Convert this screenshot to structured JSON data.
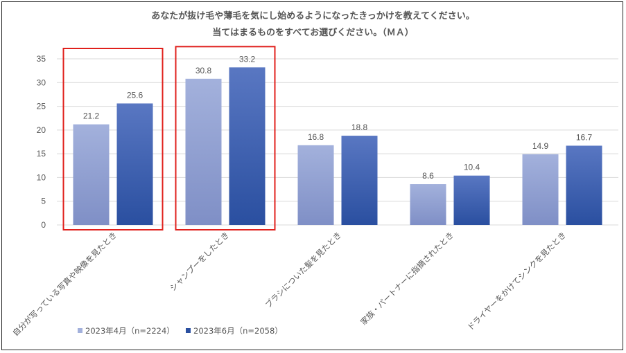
{
  "chart_data": {
    "type": "bar",
    "title_line1": "あなたが抜け毛や薄毛を気にし始めるようになったきっかけを教えてください。",
    "title_line2": "当てはまるものをすべてお選びください。（ＭＡ）",
    "categories": [
      "自分が写っている写真や映像を見たとき",
      "シャンプーをしたとき",
      "ブラシについた髪を見たとき",
      "家族・パートナーに指摘されたとき",
      "ドライヤーをかけてシンクを見たとき"
    ],
    "series": [
      {
        "name": "2023年4月（n=2224）",
        "values": [
          21.2,
          30.8,
          16.8,
          8.6,
          14.9
        ]
      },
      {
        "name": "2023年6月（n=2058）",
        "values": [
          25.6,
          33.2,
          18.8,
          10.4,
          16.7
        ]
      }
    ],
    "value_labels": [
      [
        "21.2",
        "30.8",
        "16.8",
        "8.6",
        "14.9"
      ],
      [
        "25.6",
        "33.2",
        "18.8",
        "10.4",
        "16.7"
      ]
    ],
    "ylim": [
      0,
      35
    ],
    "yticks": [
      "0",
      "5",
      "10",
      "15",
      "20",
      "25",
      "30",
      "35"
    ],
    "grid": true,
    "legend_position": "bottom-left",
    "highlighted_categories": [
      0,
      1
    ],
    "colors": {
      "series1_top": "#a3b1dc",
      "series1_bottom": "#7f8fc6",
      "series2_top": "#5977c2",
      "series2_bottom": "#2a4fa0",
      "highlight": "#e0201c",
      "grid": "#d9d9d9",
      "text": "#555555"
    }
  }
}
